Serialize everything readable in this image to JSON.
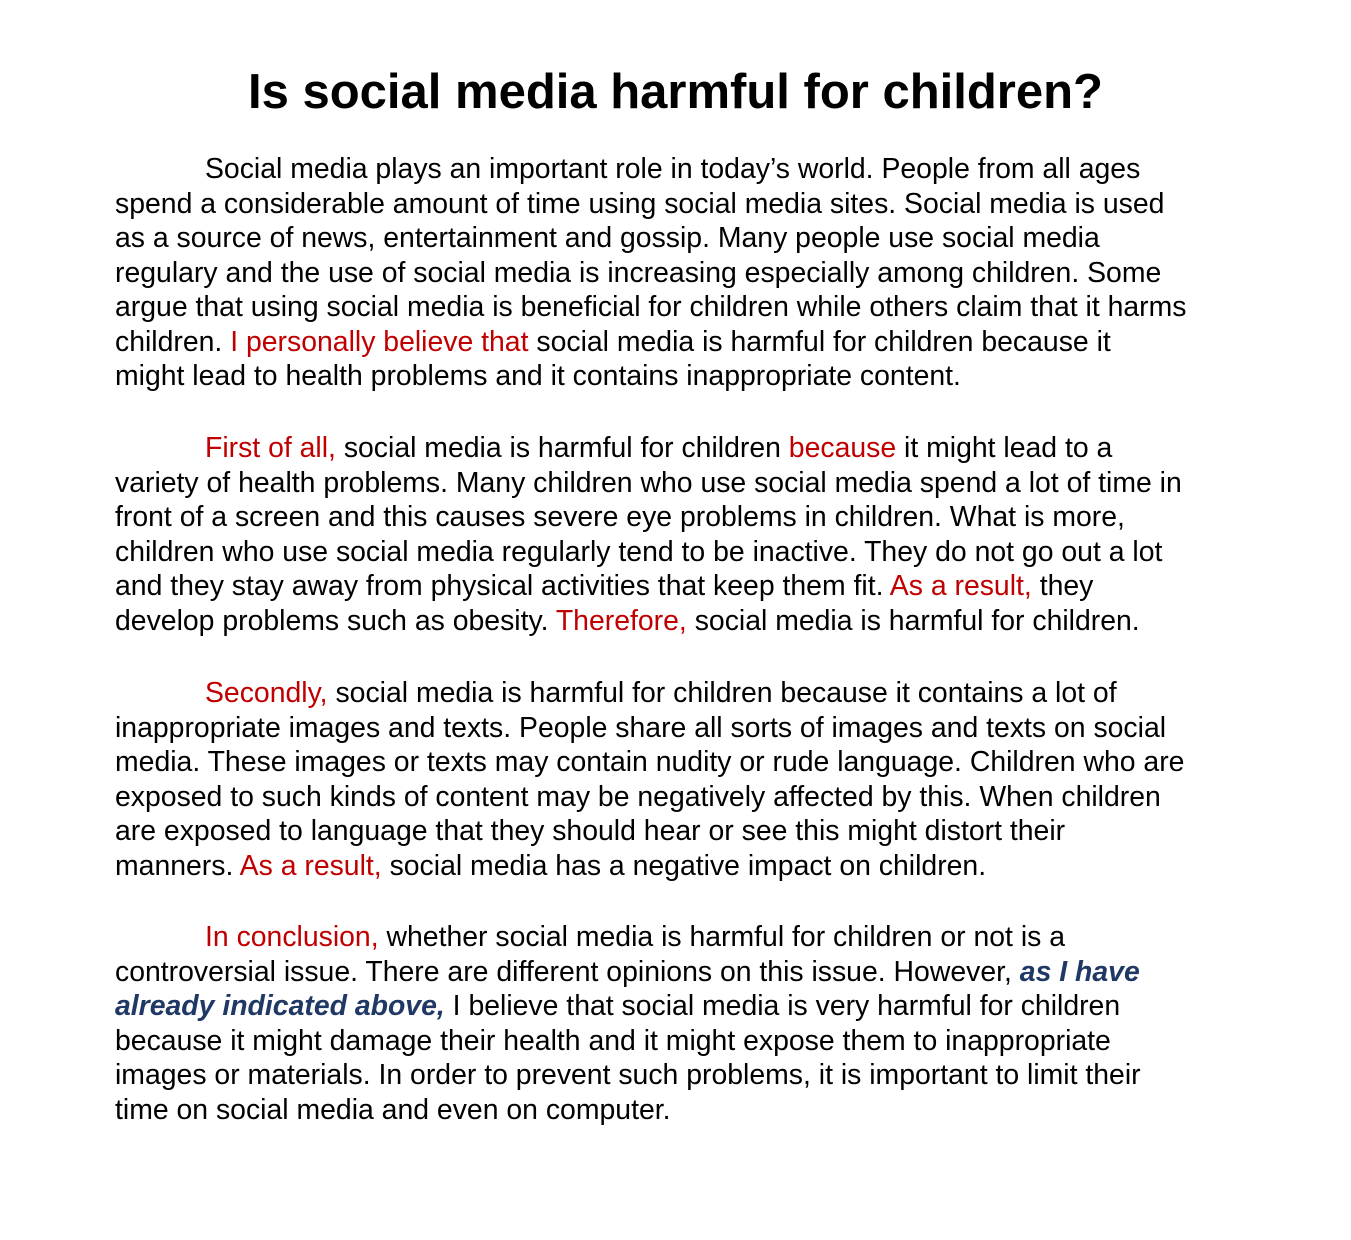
{
  "document": {
    "title": "Is social media harmful for children?",
    "colors": {
      "text": "#000000",
      "transition": "#c00000",
      "emphasis": "#1f3864"
    },
    "paragraphs": [
      {
        "lines": [
          [
            {
              "t": "Social media plays an important role in today’s world. People from all ages",
              "s": "n"
            }
          ],
          [
            {
              "t": "spend a considerable amount of time using social media sites. Social media is used",
              "s": "n"
            }
          ],
          [
            {
              "t": "as a source of news, entertainment and gossip. Many people use social media",
              "s": "n"
            }
          ],
          [
            {
              "t": "regulary and the use of social media is increasing especially among children. Some",
              "s": "n"
            }
          ],
          [
            {
              "t": "argue that using social media is beneficial for children while others claim that it harms",
              "s": "n"
            }
          ],
          [
            {
              "t": "children. ",
              "s": "n"
            },
            {
              "t": "I personally believe that",
              "s": "r"
            },
            {
              "t": " social media is harmful for children because it",
              "s": "n"
            }
          ],
          [
            {
              "t": "might lead to health problems and it contains inappropriate content.",
              "s": "n"
            }
          ]
        ]
      },
      {
        "lines": [
          [
            {
              "t": "First of all,",
              "s": "r"
            },
            {
              "t": " social media is harmful for children ",
              "s": "n"
            },
            {
              "t": "because",
              "s": "r"
            },
            {
              "t": " it might lead to a",
              "s": "n"
            }
          ],
          [
            {
              "t": "variety of health problems. Many children who use social media spend a lot of time in",
              "s": "n"
            }
          ],
          [
            {
              "t": "front of a screen and this causes severe eye problems in children. What is more,",
              "s": "n"
            }
          ],
          [
            {
              "t": "children who use social media regularly tend to be inactive. They do not go out a lot",
              "s": "n"
            }
          ],
          [
            {
              "t": "and they stay away from physical activities that keep them fit. ",
              "s": "n"
            },
            {
              "t": "As a result,",
              "s": "r"
            },
            {
              "t": " they",
              "s": "n"
            }
          ],
          [
            {
              "t": "develop problems such as obesity. ",
              "s": "n"
            },
            {
              "t": "Therefore,",
              "s": "r"
            },
            {
              "t": " social media is harmful for children.",
              "s": "n"
            }
          ]
        ]
      },
      {
        "lines": [
          [
            {
              "t": "Secondly,",
              "s": "r"
            },
            {
              "t": " social media is harmful for children because it contains a lot of",
              "s": "n"
            }
          ],
          [
            {
              "t": "inappropriate images and texts. People share all sorts of images and texts on social",
              "s": "n"
            }
          ],
          [
            {
              "t": "media. These images or texts may contain nudity or rude language. Children who are",
              "s": "n"
            }
          ],
          [
            {
              "t": "exposed to such kinds of content may be negatively affected by this. When children",
              "s": "n"
            }
          ],
          [
            {
              "t": "are exposed to language that they should hear or see this might distort their",
              "s": "n"
            }
          ],
          [
            {
              "t": "manners. ",
              "s": "n"
            },
            {
              "t": "As a result,",
              "s": "r"
            },
            {
              "t": " social media has a negative impact on children.",
              "s": "n"
            }
          ]
        ]
      },
      {
        "lines": [
          [
            {
              "t": "In conclusion,",
              "s": "r"
            },
            {
              "t": " whether social media is harmful for children or not is a",
              "s": "n"
            }
          ],
          [
            {
              "t": "controversial issue. There are different opinions on this issue. However, ",
              "s": "n"
            },
            {
              "t": "as I have",
              "s": "e"
            }
          ],
          [
            {
              "t": "already indicated above,",
              "s": "e"
            },
            {
              "t": " I believe that social media is very harmful for children",
              "s": "n"
            }
          ],
          [
            {
              "t": "because it might damage their health and it might expose them to inappropriate",
              "s": "n"
            }
          ],
          [
            {
              "t": "images or materials. In order to prevent such problems, it is important to limit their",
              "s": "n"
            }
          ],
          [
            {
              "t": "time on social media and even on computer.",
              "s": "n"
            }
          ]
        ]
      }
    ]
  }
}
